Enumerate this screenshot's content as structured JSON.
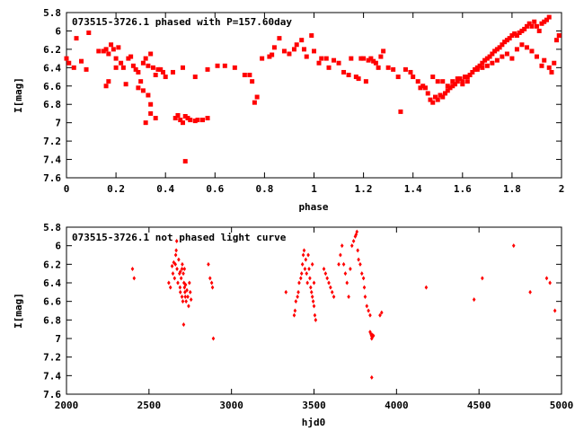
{
  "chart_data": [
    {
      "type": "scatter",
      "title": "073515-3726.1 phased with P=157.60day",
      "xlabel": "phase",
      "ylabel": "I[mag]",
      "xlim": [
        0,
        2
      ],
      "ylim": [
        5.8,
        7.6
      ],
      "y_inverted": true,
      "marker": "square",
      "marker_color": "#ff0000",
      "xticks": [
        "0",
        "0.2",
        "0.4",
        "0.6",
        "0.8",
        "1",
        "1.2",
        "1.4",
        "1.6",
        "1.8",
        "2"
      ],
      "yticks": [
        "5.8",
        "6",
        "6.2",
        "6.4",
        "6.6",
        "6.8",
        "7",
        "7.2",
        "7.4",
        "7.6"
      ],
      "points": [
        [
          0.0,
          6.3
        ],
        [
          0.01,
          6.35
        ],
        [
          0.03,
          6.4
        ],
        [
          0.04,
          6.08
        ],
        [
          0.06,
          6.33
        ],
        [
          0.08,
          6.42
        ],
        [
          0.09,
          6.02
        ],
        [
          0.13,
          6.22
        ],
        [
          0.15,
          6.22
        ],
        [
          0.16,
          6.2
        ],
        [
          0.17,
          6.25
        ],
        [
          0.18,
          6.15
        ],
        [
          0.19,
          6.2
        ],
        [
          0.2,
          6.3
        ],
        [
          0.21,
          6.18
        ],
        [
          0.22,
          6.35
        ],
        [
          0.16,
          6.6
        ],
        [
          0.17,
          6.55
        ],
        [
          0.2,
          6.4
        ],
        [
          0.23,
          6.4
        ],
        [
          0.24,
          6.58
        ],
        [
          0.25,
          6.3
        ],
        [
          0.26,
          6.28
        ],
        [
          0.27,
          6.38
        ],
        [
          0.28,
          6.42
        ],
        [
          0.29,
          6.45
        ],
        [
          0.3,
          6.55
        ],
        [
          0.31,
          6.35
        ],
        [
          0.32,
          6.3
        ],
        [
          0.33,
          6.38
        ],
        [
          0.34,
          6.25
        ],
        [
          0.35,
          6.4
        ],
        [
          0.36,
          6.48
        ],
        [
          0.37,
          6.42
        ],
        [
          0.29,
          6.62
        ],
        [
          0.31,
          6.65
        ],
        [
          0.33,
          6.7
        ],
        [
          0.34,
          6.8
        ],
        [
          0.34,
          6.9
        ],
        [
          0.32,
          7.0
        ],
        [
          0.36,
          6.95
        ],
        [
          0.38,
          6.42
        ],
        [
          0.39,
          6.45
        ],
        [
          0.4,
          6.5
        ],
        [
          0.44,
          6.95
        ],
        [
          0.45,
          6.92
        ],
        [
          0.46,
          6.97
        ],
        [
          0.47,
          7.0
        ],
        [
          0.48,
          6.93
        ],
        [
          0.49,
          6.95
        ],
        [
          0.5,
          6.97
        ],
        [
          0.52,
          6.98
        ],
        [
          0.53,
          6.97
        ],
        [
          0.55,
          6.97
        ],
        [
          0.57,
          6.95
        ],
        [
          0.43,
          6.45
        ],
        [
          0.47,
          6.4
        ],
        [
          0.48,
          7.42
        ],
        [
          0.52,
          6.5
        ],
        [
          0.57,
          6.42
        ],
        [
          0.61,
          6.38
        ],
        [
          0.64,
          6.38
        ],
        [
          0.68,
          6.4
        ],
        [
          0.72,
          6.48
        ],
        [
          0.74,
          6.48
        ],
        [
          0.75,
          6.55
        ],
        [
          0.76,
          6.78
        ],
        [
          0.77,
          6.72
        ],
        [
          0.79,
          6.3
        ],
        [
          0.82,
          6.28
        ],
        [
          0.83,
          6.26
        ],
        [
          0.84,
          6.18
        ],
        [
          0.86,
          6.08
        ],
        [
          0.88,
          6.22
        ],
        [
          0.9,
          6.25
        ],
        [
          0.92,
          6.2
        ],
        [
          0.93,
          6.15
        ],
        [
          0.95,
          6.1
        ],
        [
          0.96,
          6.2
        ],
        [
          0.97,
          6.28
        ],
        [
          0.99,
          6.05
        ],
        [
          1.0,
          6.22
        ],
        [
          1.02,
          6.35
        ],
        [
          1.03,
          6.3
        ],
        [
          1.05,
          6.3
        ],
        [
          1.06,
          6.4
        ],
        [
          1.08,
          6.32
        ],
        [
          1.1,
          6.35
        ],
        [
          1.12,
          6.45
        ],
        [
          1.14,
          6.48
        ],
        [
          1.15,
          6.3
        ],
        [
          1.17,
          6.5
        ],
        [
          1.18,
          6.52
        ],
        [
          1.19,
          6.3
        ],
        [
          1.2,
          6.3
        ],
        [
          1.21,
          6.55
        ],
        [
          1.22,
          6.32
        ],
        [
          1.23,
          6.3
        ],
        [
          1.24,
          6.33
        ],
        [
          1.25,
          6.35
        ],
        [
          1.26,
          6.4
        ],
        [
          1.27,
          6.28
        ],
        [
          1.28,
          6.22
        ],
        [
          1.3,
          6.4
        ],
        [
          1.32,
          6.42
        ],
        [
          1.34,
          6.5
        ],
        [
          1.35,
          6.88
        ],
        [
          1.37,
          6.42
        ],
        [
          1.39,
          6.45
        ],
        [
          1.4,
          6.5
        ],
        [
          1.42,
          6.55
        ],
        [
          1.43,
          6.62
        ],
        [
          1.44,
          6.6
        ],
        [
          1.45,
          6.62
        ],
        [
          1.46,
          6.68
        ],
        [
          1.47,
          6.75
        ],
        [
          1.48,
          6.78
        ],
        [
          1.49,
          6.72
        ],
        [
          1.5,
          6.75
        ],
        [
          1.51,
          6.7
        ],
        [
          1.52,
          6.72
        ],
        [
          1.53,
          6.68
        ],
        [
          1.54,
          6.65
        ],
        [
          1.55,
          6.62
        ],
        [
          1.56,
          6.6
        ],
        [
          1.57,
          6.58
        ],
        [
          1.58,
          6.55
        ],
        [
          1.59,
          6.52
        ],
        [
          1.6,
          6.55
        ],
        [
          1.61,
          6.5
        ],
        [
          1.62,
          6.5
        ],
        [
          1.63,
          6.48
        ],
        [
          1.64,
          6.45
        ],
        [
          1.65,
          6.42
        ],
        [
          1.66,
          6.4
        ],
        [
          1.67,
          6.38
        ],
        [
          1.68,
          6.35
        ],
        [
          1.69,
          6.32
        ],
        [
          1.7,
          6.3
        ],
        [
          1.71,
          6.28
        ],
        [
          1.72,
          6.25
        ],
        [
          1.73,
          6.22
        ],
        [
          1.74,
          6.2
        ],
        [
          1.75,
          6.18
        ],
        [
          1.76,
          6.15
        ],
        [
          1.77,
          6.12
        ],
        [
          1.78,
          6.1
        ],
        [
          1.79,
          6.08
        ],
        [
          1.8,
          6.05
        ],
        [
          1.81,
          6.03
        ],
        [
          1.82,
          6.05
        ],
        [
          1.83,
          6.02
        ],
        [
          1.84,
          6.0
        ],
        [
          1.85,
          5.98
        ],
        [
          1.86,
          5.95
        ],
        [
          1.87,
          5.92
        ],
        [
          1.88,
          5.95
        ],
        [
          1.89,
          5.9
        ],
        [
          1.9,
          5.95
        ],
        [
          1.91,
          6.0
        ],
        [
          1.92,
          5.92
        ],
        [
          1.93,
          5.9
        ],
        [
          1.94,
          5.88
        ],
        [
          1.95,
          5.85
        ],
        [
          1.48,
          6.5
        ],
        [
          1.5,
          6.55
        ],
        [
          1.52,
          6.55
        ],
        [
          1.54,
          6.6
        ],
        [
          1.56,
          6.55
        ],
        [
          1.58,
          6.52
        ],
        [
          1.6,
          6.58
        ],
        [
          1.62,
          6.55
        ],
        [
          1.66,
          6.42
        ],
        [
          1.68,
          6.4
        ],
        [
          1.7,
          6.38
        ],
        [
          1.72,
          6.35
        ],
        [
          1.74,
          6.32
        ],
        [
          1.76,
          6.28
        ],
        [
          1.78,
          6.25
        ],
        [
          1.8,
          6.3
        ],
        [
          1.82,
          6.2
        ],
        [
          1.84,
          6.15
        ],
        [
          1.86,
          6.18
        ],
        [
          1.88,
          6.22
        ],
        [
          1.9,
          6.28
        ],
        [
          1.92,
          6.38
        ],
        [
          1.93,
          6.32
        ],
        [
          1.95,
          6.4
        ],
        [
          1.96,
          6.45
        ],
        [
          1.97,
          6.35
        ],
        [
          1.98,
          6.1
        ],
        [
          1.99,
          6.05
        ]
      ]
    },
    {
      "type": "scatter",
      "title": "073515-3726.1 not phased light curve",
      "xlabel": "hjd0",
      "ylabel": "I[mag]",
      "xlim": [
        2000,
        5000
      ],
      "ylim": [
        5.8,
        7.6
      ],
      "y_inverted": true,
      "marker": "diamond",
      "marker_color": "#ff0000",
      "xticks": [
        "2000",
        "2500",
        "3000",
        "3500",
        "4000",
        "4500",
        "5000"
      ],
      "yticks": [
        "5.8",
        "6",
        "6.2",
        "6.4",
        "6.6",
        "6.8",
        "7",
        "7.2",
        "7.4",
        "7.6"
      ],
      "points": [
        [
          2400,
          6.25
        ],
        [
          2410,
          6.35
        ],
        [
          2620,
          6.4
        ],
        [
          2630,
          6.45
        ],
        [
          2640,
          6.22
        ],
        [
          2645,
          6.3
        ],
        [
          2650,
          6.18
        ],
        [
          2655,
          6.35
        ],
        [
          2660,
          6.2
        ],
        [
          2662,
          6.1
        ],
        [
          2665,
          6.05
        ],
        [
          2668,
          5.95
        ],
        [
          2670,
          6.25
        ],
        [
          2675,
          6.4
        ],
        [
          2680,
          6.15
        ],
        [
          2685,
          6.3
        ],
        [
          2688,
          6.45
        ],
        [
          2690,
          6.5
        ],
        [
          2695,
          6.35
        ],
        [
          2700,
          6.55
        ],
        [
          2702,
          6.2
        ],
        [
          2705,
          6.6
        ],
        [
          2708,
          6.3
        ],
        [
          2710,
          6.85
        ],
        [
          2712,
          6.4
        ],
        [
          2715,
          6.45
        ],
        [
          2718,
          6.5
        ],
        [
          2720,
          6.55
        ],
        [
          2722,
          6.42
        ],
        [
          2725,
          6.6
        ],
        [
          2730,
          6.48
        ],
        [
          2735,
          6.55
        ],
        [
          2740,
          6.65
        ],
        [
          2745,
          6.4
        ],
        [
          2750,
          6.5
        ],
        [
          2755,
          6.58
        ],
        [
          2690,
          6.28
        ],
        [
          2700,
          6.25
        ],
        [
          2715,
          6.25
        ],
        [
          2860,
          6.2
        ],
        [
          2870,
          6.35
        ],
        [
          2880,
          6.4
        ],
        [
          2885,
          6.45
        ],
        [
          2890,
          7.0
        ],
        [
          3330,
          6.5
        ],
        [
          3380,
          6.75
        ],
        [
          3385,
          6.7
        ],
        [
          3390,
          6.6
        ],
        [
          3400,
          6.55
        ],
        [
          3405,
          6.5
        ],
        [
          3410,
          6.4
        ],
        [
          3420,
          6.35
        ],
        [
          3425,
          6.3
        ],
        [
          3430,
          6.2
        ],
        [
          3435,
          6.1
        ],
        [
          3440,
          6.05
        ],
        [
          3445,
          6.25
        ],
        [
          3450,
          6.15
        ],
        [
          3455,
          6.3
        ],
        [
          3460,
          6.4
        ],
        [
          3465,
          6.1
        ],
        [
          3470,
          6.25
        ],
        [
          3475,
          6.35
        ],
        [
          3480,
          6.45
        ],
        [
          3485,
          6.5
        ],
        [
          3490,
          6.55
        ],
        [
          3495,
          6.6
        ],
        [
          3500,
          6.65
        ],
        [
          3505,
          6.75
        ],
        [
          3510,
          6.8
        ],
        [
          3500,
          6.4
        ],
        [
          3490,
          6.2
        ],
        [
          3560,
          6.25
        ],
        [
          3570,
          6.3
        ],
        [
          3580,
          6.35
        ],
        [
          3590,
          6.4
        ],
        [
          3600,
          6.45
        ],
        [
          3610,
          6.5
        ],
        [
          3620,
          6.55
        ],
        [
          3650,
          6.2
        ],
        [
          3660,
          6.1
        ],
        [
          3670,
          6.0
        ],
        [
          3680,
          6.2
        ],
        [
          3690,
          6.3
        ],
        [
          3700,
          6.4
        ],
        [
          3710,
          6.55
        ],
        [
          3720,
          6.25
        ],
        [
          3730,
          6.0
        ],
        [
          3740,
          5.95
        ],
        [
          3750,
          5.9
        ],
        [
          3755,
          5.88
        ],
        [
          3760,
          5.85
        ],
        [
          3765,
          6.05
        ],
        [
          3770,
          6.15
        ],
        [
          3780,
          6.2
        ],
        [
          3790,
          6.3
        ],
        [
          3800,
          6.35
        ],
        [
          3805,
          6.45
        ],
        [
          3810,
          6.55
        ],
        [
          3820,
          6.65
        ],
        [
          3830,
          6.7
        ],
        [
          3840,
          6.75
        ],
        [
          3845,
          6.95
        ],
        [
          3848,
          6.97
        ],
        [
          3850,
          7.0
        ],
        [
          3852,
          6.96
        ],
        [
          3855,
          6.98
        ],
        [
          3840,
          6.93
        ],
        [
          3860,
          6.97
        ],
        [
          3850,
          7.42
        ],
        [
          3900,
          6.75
        ],
        [
          3910,
          6.72
        ],
        [
          4180,
          6.45
        ],
        [
          4470,
          6.58
        ],
        [
          4520,
          6.35
        ],
        [
          4710,
          6.0
        ],
        [
          4810,
          6.5
        ],
        [
          4910,
          6.35
        ],
        [
          4930,
          6.4
        ],
        [
          4960,
          6.7
        ]
      ]
    }
  ]
}
